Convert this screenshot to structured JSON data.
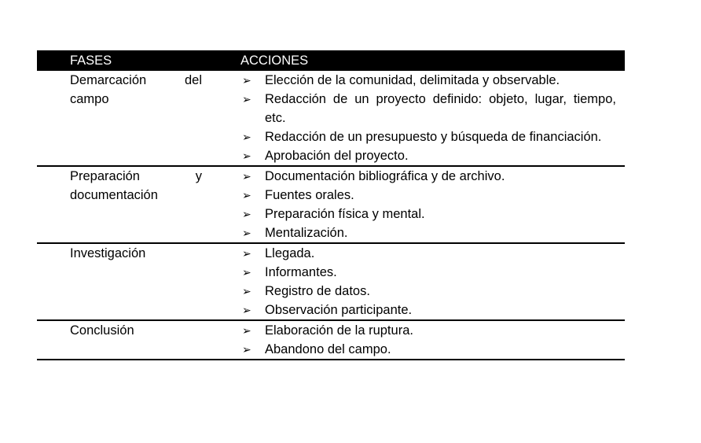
{
  "table": {
    "headers": [
      "FASES",
      "ACCIONES"
    ],
    "rows": [
      {
        "fase": "Demarcación del campo",
        "acciones": [
          "Elección de la comunidad, delimitada y observable.",
          "Redacción de un proyecto definido: objeto, lugar, tiempo, etc.",
          "Redacción de un presupuesto y búsqueda de financiación.",
          "Aprobación del proyecto."
        ]
      },
      {
        "fase": "Preparación y documentación",
        "acciones": [
          "Documentación bibliográfica y de archivo.",
          "Fuentes orales.",
          "Preparación física y mental.",
          "Mentalización."
        ]
      },
      {
        "fase": "Investigación",
        "acciones": [
          "Llegada.",
          "Informantes.",
          "Registro de datos.",
          "Observación participante."
        ]
      },
      {
        "fase": "Conclusión",
        "acciones": [
          "Elaboración de la ruptura.",
          "Abandono del campo."
        ]
      }
    ]
  },
  "bullet_icon": "arrowhead-bullet",
  "bullet_glyph": "➢"
}
